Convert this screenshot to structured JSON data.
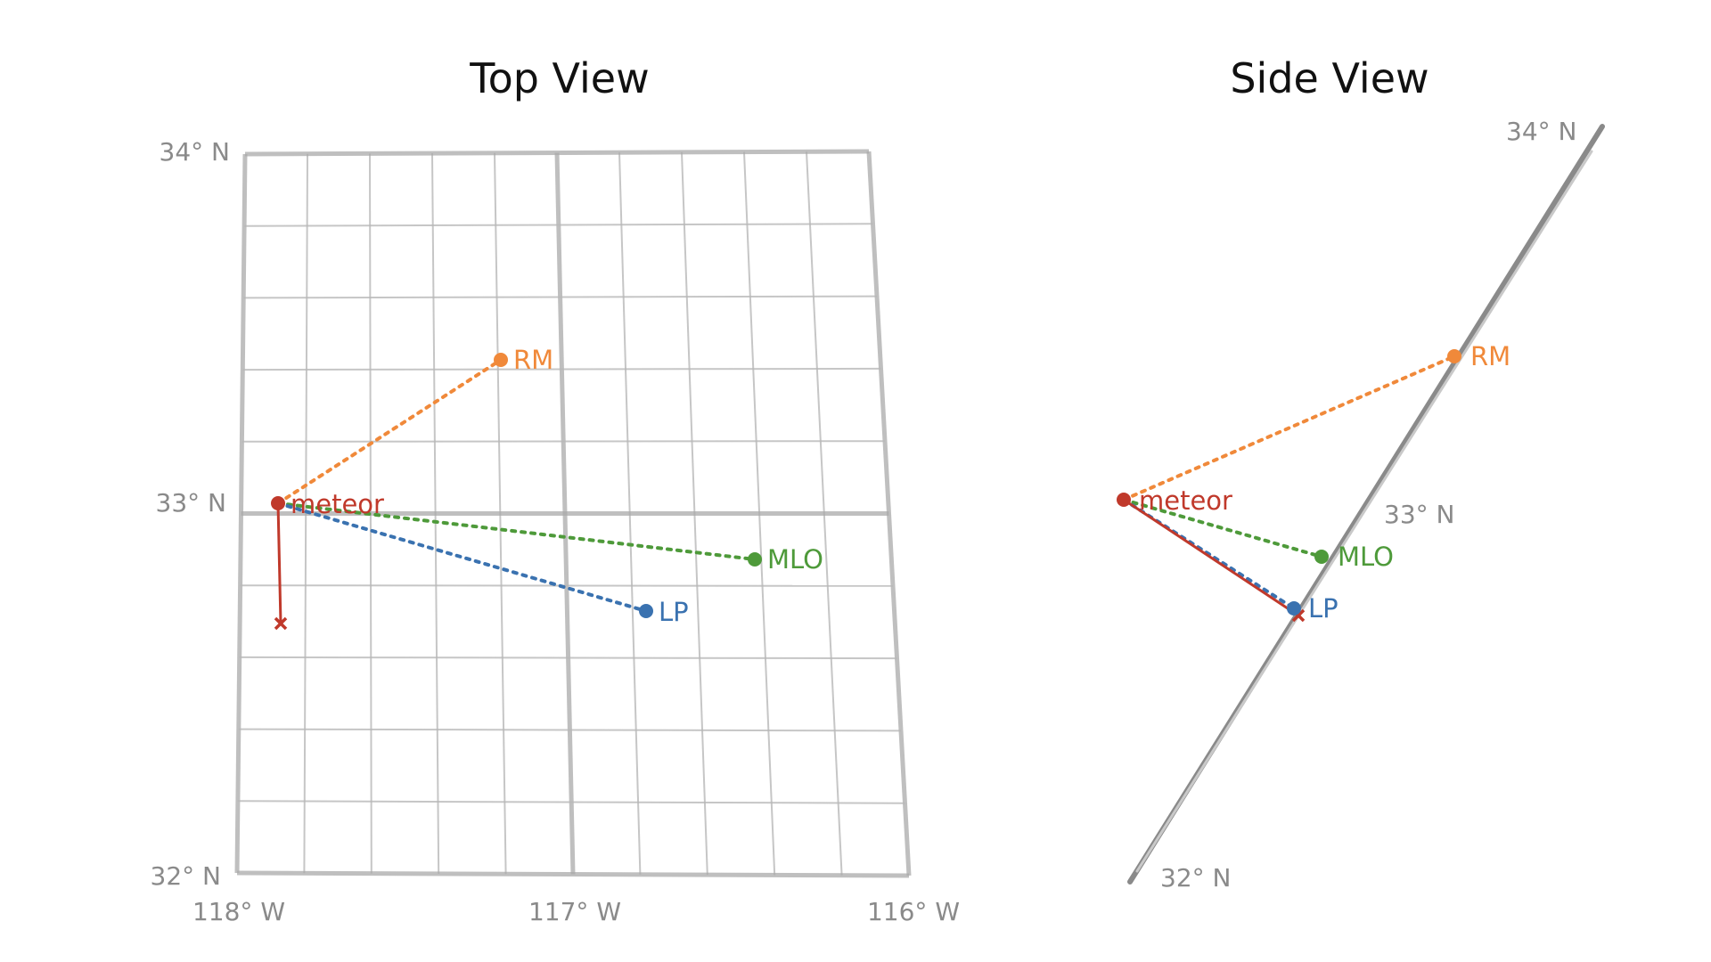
{
  "top_view": {
    "title": "Top View",
    "lat_labels": {
      "lat34": "34° N",
      "lat33": "33° N",
      "lat32": "32° N"
    },
    "lon_labels": {
      "lon118": "118° W",
      "lon117": "117° W",
      "lon116": "116° W"
    },
    "points": {
      "meteor": {
        "label": "meteor",
        "color": "#c0392b"
      },
      "rm": {
        "label": "RM",
        "color": "#f0893a"
      },
      "mlo": {
        "label": "MLO",
        "color": "#4e9a3a"
      },
      "lp": {
        "label": "LP",
        "color": "#3a72b0"
      }
    }
  },
  "side_view": {
    "title": "Side View",
    "lat_labels": {
      "lat34": "34° N",
      "lat33": "33° N",
      "lat32": "32° N"
    },
    "points": {
      "meteor": {
        "label": "meteor",
        "color": "#c0392b"
      },
      "rm": {
        "label": "RM",
        "color": "#f0893a"
      },
      "mlo": {
        "label": "MLO",
        "color": "#4e9a3a"
      },
      "lp": {
        "label": "LP",
        "color": "#3a72b0"
      }
    }
  },
  "colors": {
    "grid": "#b8b8b8",
    "grid_major": "#aaaaaa",
    "ground": "#888888"
  }
}
